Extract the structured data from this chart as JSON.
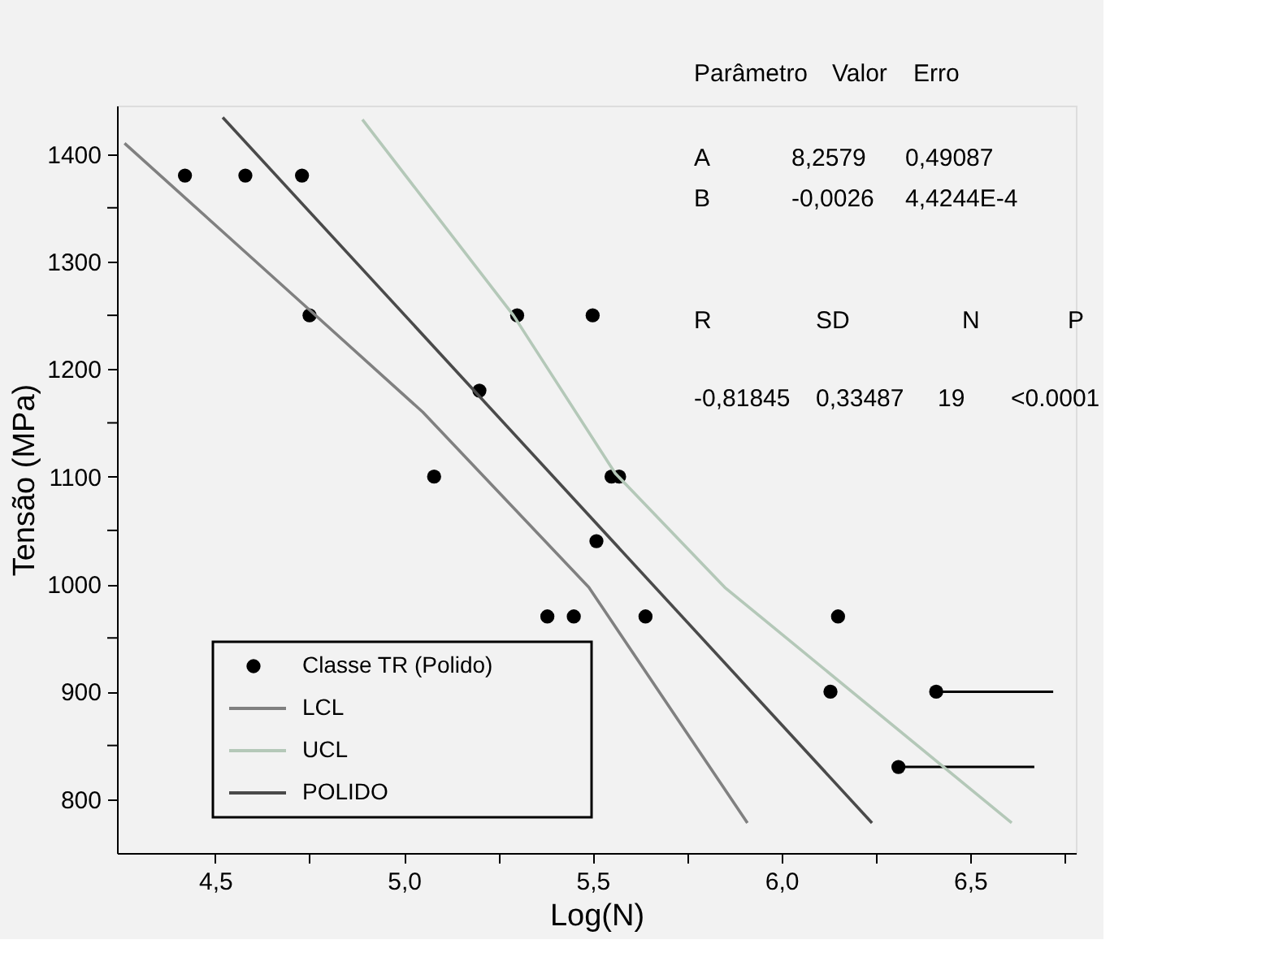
{
  "chart_data": {
    "type": "scatter",
    "xlabel": "Log(N)",
    "ylabel": "Tensão (MPa)",
    "xlim": [
      4.24,
      6.78
    ],
    "ylim": [
      750,
      1445
    ],
    "xticks": [
      {
        "value": 4.5,
        "label": "4,5"
      },
      {
        "value": 4.75,
        "label": null
      },
      {
        "value": 5.0,
        "label": "5,0"
      },
      {
        "value": 5.25,
        "label": null
      },
      {
        "value": 5.5,
        "label": "5,5"
      },
      {
        "value": 5.75,
        "label": null
      },
      {
        "value": 6.0,
        "label": "6,0"
      },
      {
        "value": 6.25,
        "label": null
      },
      {
        "value": 6.5,
        "label": "6,5"
      },
      {
        "value": 6.75,
        "label": null
      }
    ],
    "yticks": [
      800,
      {
        "value": 850,
        "label": null
      },
      900,
      {
        "value": 950,
        "label": null
      },
      1000,
      {
        "value": 1050,
        "label": null
      },
      1100,
      {
        "value": 1150,
        "label": null
      },
      1200,
      {
        "value": 1250,
        "label": null
      },
      1300,
      {
        "value": 1350,
        "label": null
      },
      1400
    ],
    "grid": false,
    "legend": "bottom left",
    "series": [
      {
        "name": "Classe TR (Polido)",
        "type": "scatter",
        "marker": "circle",
        "color": "#000000",
        "x": [
          4.42,
          4.58,
          4.73,
          4.75,
          5.3,
          5.5,
          5.08,
          5.2,
          5.55,
          5.57,
          5.51,
          5.38,
          5.45,
          5.64,
          6.15,
          6.13,
          6.41,
          6.31
        ],
        "values": [
          1380,
          1380,
          1380,
          1250,
          1250,
          1250,
          1100,
          1180,
          1100,
          1100,
          1040,
          970,
          970,
          970,
          970,
          900,
          900,
          830
        ],
        "xerrors": [
          null,
          null,
          null,
          null,
          null,
          null,
          null,
          null,
          null,
          null,
          null,
          null,
          null,
          null,
          null,
          null,
          [
            6.41,
            6.72
          ],
          [
            6.31,
            6.67
          ]
        ]
      },
      {
        "name": "LCL",
        "type": "line",
        "marker": "none",
        "line_style": "solid",
        "color": "#808080",
        "x": [
          4.26,
          4.75,
          5.05,
          5.49,
          5.91
        ],
        "values": [
          1410,
          1255,
          1160,
          997,
          778
        ]
      },
      {
        "name": "UCL",
        "type": "line",
        "marker": "none",
        "line_style": "solid",
        "color": "#b4c8b8",
        "x": [
          4.89,
          5.29,
          5.56,
          5.85,
          6.61
        ],
        "values": [
          1432,
          1250,
          1103,
          997,
          778
        ]
      },
      {
        "name": "POLIDO",
        "type": "line",
        "marker": "none",
        "line_style": "solid",
        "color": "#4a4a4a",
        "x": [
          4.52,
          6.24
        ],
        "values": [
          1434,
          778
        ]
      }
    ],
    "annotations": [
      "Parâmetro",
      "Valor",
      "Erro",
      "A",
      "8,2579",
      "0,49087",
      "B",
      "-0,0026",
      "4,4244E-4",
      "R",
      "SD",
      "N",
      "P",
      "-0,81845",
      "0,33487",
      "19",
      "<0.0001"
    ]
  }
}
